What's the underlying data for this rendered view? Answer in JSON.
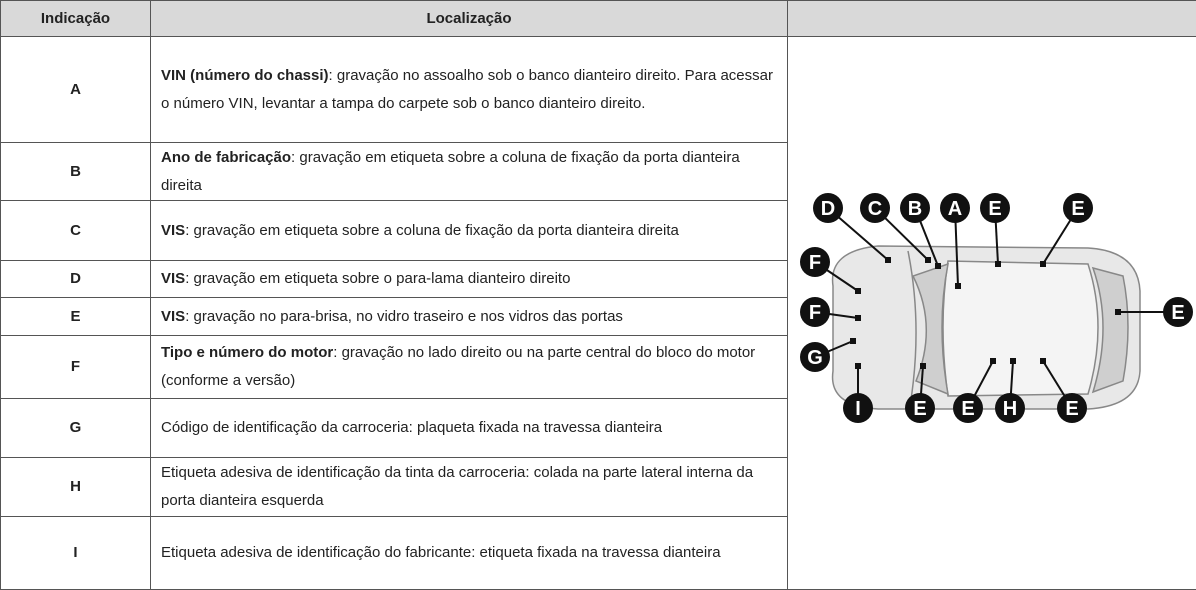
{
  "table": {
    "header": [
      "Indicação",
      "Localização"
    ],
    "rows": [
      {
        "indicacao": "A",
        "bold": "VIN (número do chassi)",
        "texto": ": gravação no assoalho sob o banco dianteiro direito. Para acessar o número VIN, levantar a tampa do carpete sob o banco dianteiro direito."
      },
      {
        "indicacao": "B",
        "bold": "Ano de fabricação",
        "texto": ": gravação em etiqueta sobre a coluna de fixação da porta dianteira direita"
      },
      {
        "indicacao": "C",
        "bold": "VIS",
        "texto": ": gravação em etiqueta sobre a coluna de fixação da porta dianteira direita"
      },
      {
        "indicacao": "D",
        "bold": "VIS",
        "texto": ": gravação em etiqueta sobre o para-lama dianteiro direito"
      },
      {
        "indicacao": "E",
        "bold": "VIS",
        "texto": ": gravação no para-brisa, no vidro traseiro e nos vidros das portas"
      },
      {
        "indicacao": "F",
        "bold": "Tipo e número do motor",
        "texto": ": gravação no lado direito ou na parte central do bloco do motor (conforme a versão)"
      },
      {
        "indicacao": "G",
        "texto": "Código de identificação da carroceria: plaqueta fixada na travessa dianteira"
      },
      {
        "indicacao": "H",
        "texto": "Etiqueta adesiva de identificação da tinta da carroceria: colada na parte lateral interna da porta dianteira esquerda"
      },
      {
        "indicacao": "I",
        "texto": "Etiqueta adesiva de identificação do fabricante: etiqueta fixada na travessa dianteira"
      }
    ]
  },
  "diagram": {
    "labels": [
      "D",
      "C",
      "B",
      "A",
      "E",
      "E",
      "F",
      "F",
      "G",
      "E",
      "I",
      "E",
      "E",
      "H",
      "E"
    ]
  }
}
